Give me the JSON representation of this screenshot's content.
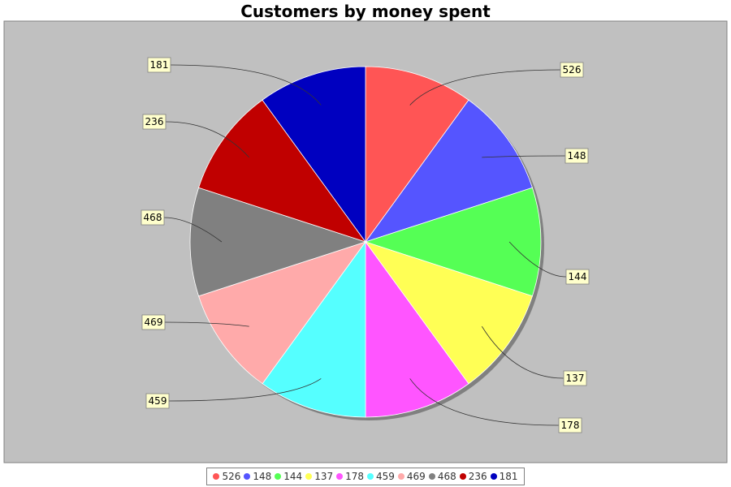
{
  "chart_data": {
    "type": "pie",
    "title": "Customers by money spent",
    "slices": [
      {
        "label": "526",
        "value": 526,
        "color": "#ff5555"
      },
      {
        "label": "148",
        "value": 148,
        "color": "#5555ff"
      },
      {
        "label": "144",
        "value": 144,
        "color": "#55ff55"
      },
      {
        "label": "137",
        "value": 137,
        "color": "#ffff55"
      },
      {
        "label": "178",
        "value": 178,
        "color": "#ff55ff"
      },
      {
        "label": "459",
        "value": 459,
        "color": "#55ffff"
      },
      {
        "label": "469",
        "value": 469,
        "color": "#ffaaaa"
      },
      {
        "label": "468",
        "value": 468,
        "color": "#808080"
      },
      {
        "label": "236",
        "value": 236,
        "color": "#c00000"
      },
      {
        "label": "181",
        "value": 181,
        "color": "#0000c0"
      }
    ],
    "slice_sizes": "equal",
    "plot_background": "#c0c0c0",
    "legend_position": "bottom"
  }
}
